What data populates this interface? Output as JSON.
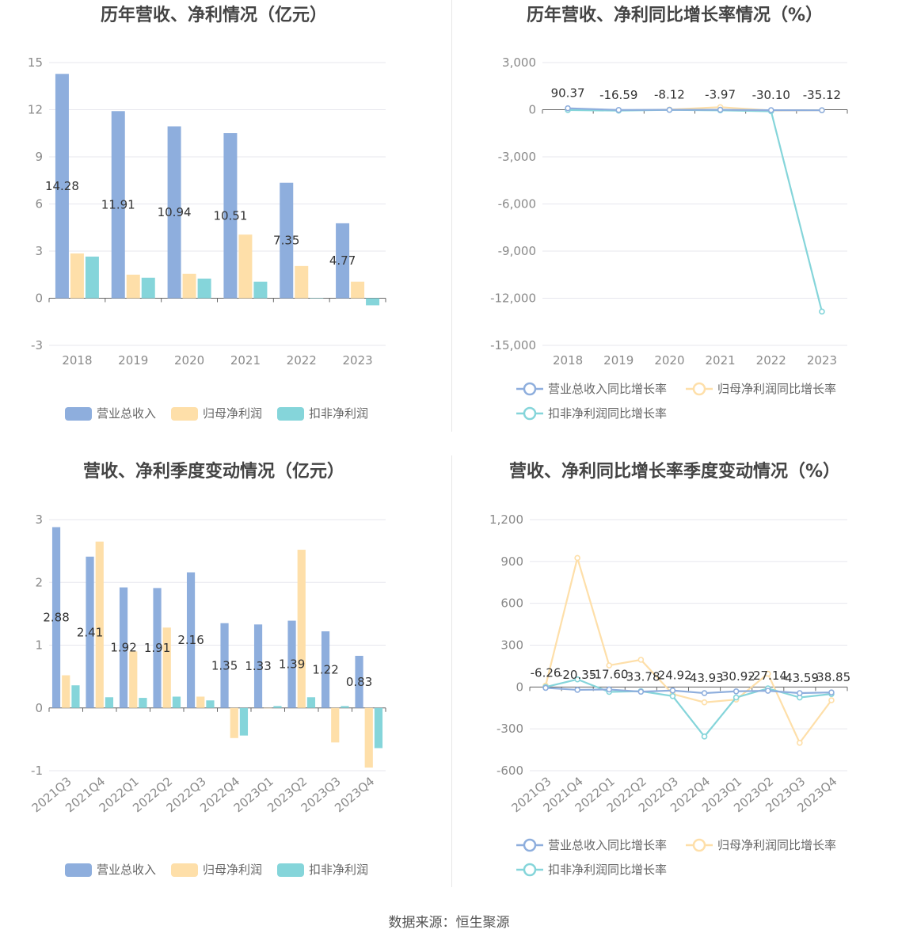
{
  "source": "数据来源：恒生聚源",
  "colors": {
    "revenue": "#8eaedd",
    "net_profit": "#fedfa9",
    "deducted": "#85d5da",
    "axis": "#999999",
    "grid": "#e7e7ee"
  },
  "chart_data": [
    {
      "type": "bar",
      "title": "历年营收、净利情况（亿元）",
      "categories": [
        "2018",
        "2019",
        "2020",
        "2021",
        "2022",
        "2023"
      ],
      "ylim": [
        -3,
        15
      ],
      "yticks": [
        "-3",
        "0",
        "3",
        "6",
        "9",
        "12",
        "15"
      ],
      "series": [
        {
          "name": "营业总收入",
          "values": [
            14.28,
            11.91,
            10.94,
            10.51,
            7.35,
            4.77
          ],
          "labels": [
            "14.28",
            "11.91",
            "10.94",
            "10.51",
            "7.35",
            "4.77"
          ]
        },
        {
          "name": "归母净利润",
          "values": [
            2.85,
            1.5,
            1.55,
            4.05,
            2.05,
            1.05
          ]
        },
        {
          "name": "扣非净利润",
          "values": [
            2.65,
            1.3,
            1.25,
            1.05,
            0.02,
            -0.45
          ]
        }
      ],
      "legend": "bottom"
    },
    {
      "type": "line",
      "title": "历年营收、净利同比增长率情况（%）",
      "categories": [
        "2018",
        "2019",
        "2020",
        "2021",
        "2022",
        "2023"
      ],
      "ylim": [
        -15000,
        3000
      ],
      "yticks": [
        "-15,000",
        "-12,000",
        "-9,000",
        "-6,000",
        "-3,000",
        "0",
        "3,000"
      ],
      "series": [
        {
          "name": "营业总收入同比增长率",
          "values": [
            90.37,
            -16.59,
            -8.12,
            -3.97,
            -30.1,
            -35.12
          ],
          "labels": [
            "90.37",
            "-16.59",
            "-8.12",
            "-3.97",
            "-30.10",
            "-35.12"
          ]
        },
        {
          "name": "归母净利润同比增长率",
          "values": [
            30,
            -40,
            10,
            160,
            -50,
            -35
          ]
        },
        {
          "name": "扣非净利润同比增长率",
          "values": [
            -20,
            -60,
            -10,
            -40,
            -100,
            -12850
          ]
        }
      ],
      "legend": "bottom"
    },
    {
      "type": "bar",
      "title": "营收、净利季度变动情况（亿元）",
      "categories": [
        "2021Q3",
        "2021Q4",
        "2022Q1",
        "2022Q2",
        "2022Q3",
        "2022Q4",
        "2023Q1",
        "2023Q2",
        "2023Q3",
        "2023Q4"
      ],
      "ylim": [
        -1,
        3
      ],
      "yticks": [
        "-1",
        "0",
        "1",
        "2",
        "3"
      ],
      "series": [
        {
          "name": "营业总收入",
          "values": [
            2.88,
            2.41,
            1.92,
            1.91,
            2.16,
            1.35,
            1.33,
            1.39,
            1.22,
            0.83
          ],
          "labels": [
            "2.88",
            "2.41",
            "1.92",
            "1.91",
            "2.16",
            "1.35",
            "1.33",
            "1.39",
            "1.22",
            "0.83"
          ]
        },
        {
          "name": "归母净利润",
          "values": [
            0.52,
            2.65,
            0.9,
            1.28,
            0.18,
            -0.48,
            0.0,
            2.52,
            -0.55,
            -0.95
          ]
        },
        {
          "name": "扣非净利润",
          "values": [
            0.36,
            0.17,
            0.16,
            0.18,
            0.12,
            -0.44,
            0.03,
            0.17,
            0.03,
            -0.64
          ]
        }
      ],
      "legend": "bottom"
    },
    {
      "type": "line",
      "title": "营收、净利同比增长率季度变动情况（%）",
      "categories": [
        "2021Q3",
        "2021Q4",
        "2022Q1",
        "2022Q2",
        "2022Q3",
        "2022Q4",
        "2023Q1",
        "2023Q2",
        "2023Q3",
        "2023Q4"
      ],
      "ylim": [
        -600,
        1200
      ],
      "yticks": [
        "-600",
        "-300",
        "0",
        "300",
        "600",
        "900",
        "1,200"
      ],
      "series": [
        {
          "name": "营业总收入同比增长率",
          "values": [
            -6.26,
            -20.35,
            -17.6,
            -33.78,
            -24.92,
            -43.93,
            -30.92,
            -27.14,
            -43.59,
            -38.85
          ],
          "labels": [
            "-6.26",
            "-20.35",
            "-17.60",
            "-33.78",
            "-24.92",
            "-43.93",
            "-30.92",
            "-27.14",
            "-43.59",
            "-38.85"
          ]
        },
        {
          "name": "归母净利润同比增长率",
          "values": [
            10,
            925,
            155,
            195,
            -50,
            -110,
            -90,
            95,
            -400,
            -95
          ]
        },
        {
          "name": "扣非净利润同比增长率",
          "values": [
            0,
            55,
            -35,
            -30,
            -65,
            -355,
            -75,
            -10,
            -75,
            -50
          ]
        }
      ],
      "legend": "bottom"
    }
  ]
}
